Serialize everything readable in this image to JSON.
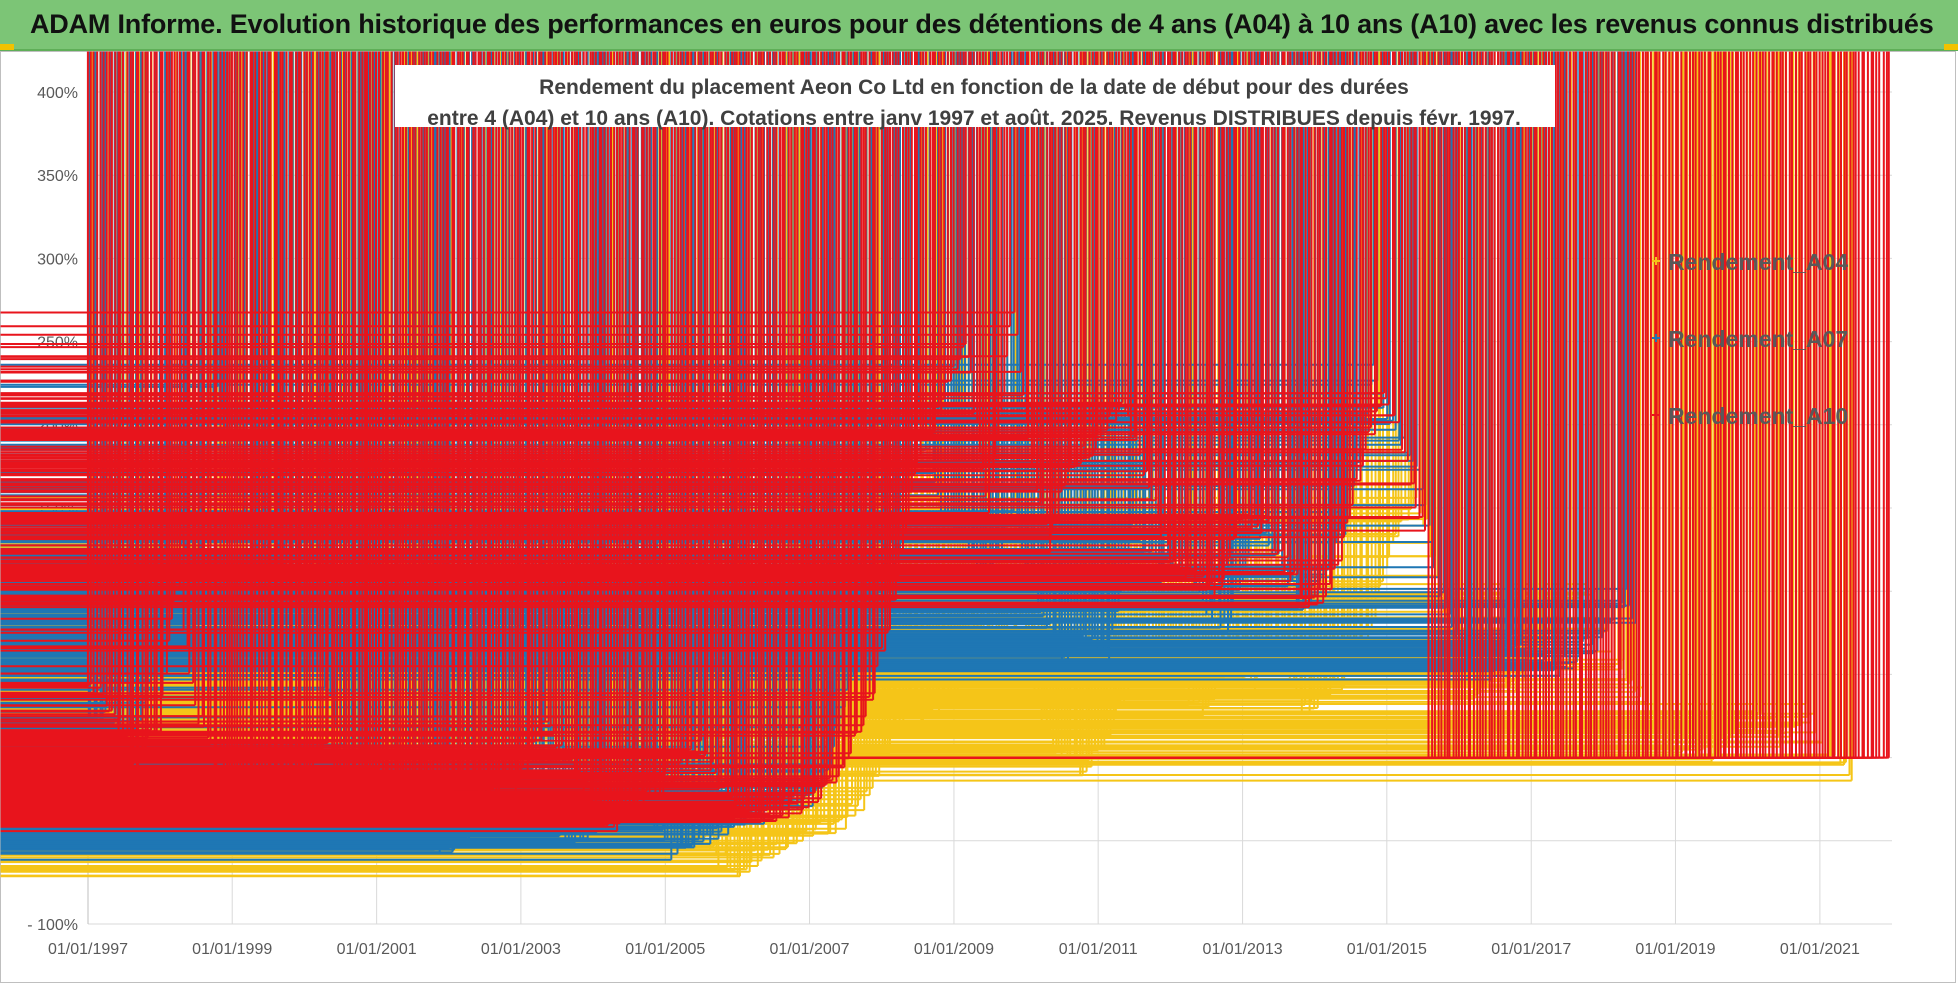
{
  "banner": {
    "title": "ADAM Informe. Evolution historique des performances en euros pour des détentions de 4 ans (A04) à 10 ans (A10) avec les revenus connus distribués"
  },
  "colors": {
    "banner_bg": "#7cc576",
    "A04": "#f5c518",
    "A07": "#1f77b4",
    "A10": "#e8141c",
    "grid": "#d9d9d9"
  },
  "chart_data": {
    "type": "scatter",
    "title_line1": "Rendement du placement Aeon Co Ltd en fonction de la date de début pour des durées",
    "title_line2": "entre 4 (A04) et 10 ans (A10).  Cotations entre janv 1997 et août. 2025. Revenus DISTRIBUES depuis févr. 1997.",
    "xlim": [
      "1997-01-01",
      "2022-01-01"
    ],
    "ylim": [
      -100,
      400
    ],
    "y_unit": "%",
    "y_ticks": [
      -100,
      -50,
      0,
      50,
      100,
      150,
      200,
      250,
      300,
      350,
      400
    ],
    "y_tick_labels": [
      "- 100%",
      "- 50%",
      "0%",
      "50%",
      "100%",
      "150%",
      "200%",
      "250%",
      "300%",
      "350%",
      "400%"
    ],
    "x_tick_labels": [
      "01/01/1997",
      "01/01/1999",
      "01/01/2001",
      "01/01/2003",
      "01/01/2005",
      "01/01/2007",
      "01/01/2009",
      "01/01/2011",
      "01/01/2013",
      "01/01/2015",
      "01/01/2017",
      "01/01/2019",
      "01/01/2021"
    ],
    "x_ticks": [
      "1997-01-01",
      "1999-01-01",
      "2001-01-01",
      "2003-01-01",
      "2005-01-01",
      "2007-01-01",
      "2009-01-01",
      "2011-01-01",
      "2013-01-01",
      "2015-01-01",
      "2017-01-01",
      "2019-01-01",
      "2021-01-01"
    ],
    "grid": true,
    "legend_position": "top-right",
    "marker": "+",
    "series": [
      {
        "name": "Rendement_A04",
        "color": "#f5c518",
        "x": [
          "1997-01-01",
          "1997-05-01",
          "1997-09-01",
          "1998-01-01",
          "1998-04-01",
          "1998-07-01",
          "1998-10-01",
          "1999-01-01",
          "1999-04-01",
          "1999-07-01",
          "1999-10-01",
          "2000-01-01",
          "2000-03-15",
          "2000-06-01",
          "2000-09-01",
          "2001-01-01",
          "2001-06-01",
          "2001-10-01",
          "2002-01-01",
          "2002-04-01",
          "2002-08-01",
          "2002-12-01",
          "2003-03-01",
          "2003-06-01",
          "2003-10-01",
          "2004-01-01",
          "2004-04-01",
          "2004-08-01",
          "2005-01-01",
          "2005-06-01",
          "2005-10-01",
          "2006-01-01",
          "2006-06-01",
          "2007-01-01",
          "2007-06-01",
          "2007-10-01",
          "2008-01-01",
          "2008-05-01",
          "2008-09-01",
          "2009-01-01",
          "2009-04-01",
          "2009-08-01",
          "2009-12-01",
          "2010-03-01",
          "2010-07-01",
          "2010-11-01",
          "2011-03-01",
          "2011-07-01",
          "2011-11-01",
          "2012-03-01",
          "2012-07-01",
          "2012-11-01",
          "2013-03-01",
          "2013-07-01",
          "2013-11-01",
          "2014-03-01",
          "2014-07-01",
          "2014-11-01",
          "2015-02-01",
          "2015-06-01",
          "2015-10-01",
          "2016-03-01",
          "2016-07-01",
          "2016-11-01",
          "2017-03-01",
          "2017-07-01",
          "2017-11-01",
          "2018-03-01",
          "2018-07-01",
          "2018-11-01",
          "2019-03-01",
          "2019-07-01",
          "2019-11-01",
          "2020-03-01",
          "2020-07-01",
          "2020-11-01",
          "2021-03-01",
          "2021-07-01"
        ],
        "y": [
          5,
          -10,
          -15,
          30,
          90,
          130,
          120,
          40,
          15,
          5,
          25,
          40,
          120,
          40,
          15,
          25,
          0,
          15,
          40,
          90,
          50,
          40,
          60,
          55,
          15,
          -35,
          -50,
          -40,
          -50,
          -45,
          -60,
          -70,
          -55,
          -45,
          -40,
          -25,
          -5,
          30,
          25,
          35,
          80,
          60,
          85,
          30,
          0,
          -5,
          15,
          50,
          60,
          40,
          30,
          60,
          45,
          70,
          30,
          40,
          50,
          85,
          130,
          160,
          100,
          35,
          50,
          45,
          70,
          85,
          100,
          60,
          40,
          5,
          10,
          0,
          15,
          25,
          10,
          30,
          0,
          -10
        ]
      },
      {
        "name": "Rendement_A07",
        "color": "#1f77b4",
        "x": [
          "1997-01-01",
          "1997-05-01",
          "1997-09-01",
          "1998-01-01",
          "1998-03-15",
          "1998-07-01",
          "1998-10-15",
          "1999-01-01",
          "1999-04-01",
          "1999-07-01",
          "1999-10-01",
          "2000-01-01",
          "2000-04-01",
          "2000-07-01",
          "2000-10-01",
          "2001-01-01",
          "2001-06-01",
          "2001-10-01",
          "2002-01-01",
          "2002-05-01",
          "2002-09-01",
          "2003-01-01",
          "2003-05-01",
          "2003-09-01",
          "2004-01-01",
          "2004-05-01",
          "2004-09-01",
          "2005-02-01",
          "2005-07-01",
          "2005-12-01",
          "2006-04-01",
          "2006-09-01",
          "2007-02-01",
          "2007-07-01",
          "2007-11-01",
          "2008-03-01",
          "2008-07-01",
          "2008-11-01",
          "2009-03-01",
          "2009-07-01",
          "2009-11-01",
          "2010-03-01",
          "2010-07-01",
          "2010-11-01",
          "2011-03-01",
          "2011-07-01",
          "2011-11-01",
          "2012-03-01",
          "2012-07-01",
          "2012-11-01",
          "2013-03-01",
          "2013-07-01",
          "2013-11-01",
          "2014-03-01",
          "2014-07-01",
          "2014-11-01",
          "2015-02-01",
          "2015-06-01",
          "2015-10-01",
          "2016-02-01",
          "2016-06-01",
          "2016-10-01",
          "2017-02-01",
          "2017-06-01",
          "2017-10-01",
          "2018-01-01",
          "2018-05-01",
          "2018-07-01"
        ],
        "y": [
          20,
          30,
          10,
          60,
          150,
          75,
          225,
          170,
          130,
          80,
          120,
          100,
          55,
          10,
          0,
          -20,
          -40,
          -50,
          -55,
          -45,
          -30,
          0,
          -25,
          -50,
          -40,
          -35,
          -25,
          -55,
          -50,
          -40,
          -35,
          -30,
          -25,
          30,
          90,
          100,
          210,
          150,
          130,
          100,
          150,
          90,
          60,
          70,
          60,
          140,
          110,
          120,
          90,
          80,
          140,
          120,
          90,
          110,
          150,
          230,
          200,
          180,
          100,
          60,
          50,
          70,
          60,
          55,
          65,
          70,
          100,
          70
        ]
      },
      {
        "name": "Rendement_A10",
        "color": "#e8141c",
        "x": [
          "1997-01-01",
          "1997-05-01",
          "1997-09-01",
          "1998-01-01",
          "1998-04-01",
          "1998-07-01",
          "1998-10-01",
          "1999-01-01",
          "1999-04-01",
          "1999-07-01",
          "1999-10-01",
          "2000-01-01",
          "2000-04-01",
          "2000-07-01",
          "2000-10-01",
          "2001-01-01",
          "2001-06-01",
          "2001-10-01",
          "2002-01-01",
          "2002-05-01",
          "2002-09-01",
          "2003-01-01",
          "2003-05-01",
          "2003-09-01",
          "2004-01-01",
          "2004-05-01",
          "2004-09-01",
          "2005-02-01",
          "2005-07-01",
          "2005-12-01",
          "2006-04-01",
          "2006-09-01",
          "2007-02-01",
          "2007-07-01",
          "2007-11-01",
          "2008-03-01",
          "2008-07-01",
          "2008-11-01",
          "2009-03-01",
          "2009-07-01",
          "2009-11-01",
          "2010-01-01",
          "2010-05-01",
          "2010-09-01",
          "2011-01-01",
          "2011-05-01",
          "2011-09-01",
          "2012-01-01",
          "2012-05-01",
          "2012-09-01",
          "2013-01-01",
          "2013-05-01",
          "2013-09-01",
          "2014-01-01",
          "2014-05-01",
          "2014-09-01",
          "2015-01-01",
          "2015-05-01",
          "2015-08-01"
        ],
        "y": [
          45,
          30,
          -5,
          20,
          110,
          30,
          0,
          -10,
          -30,
          -20,
          -25,
          -30,
          10,
          -10,
          -15,
          -10,
          -25,
          -30,
          -10,
          -20,
          -25,
          -15,
          20,
          -5,
          -25,
          -45,
          -30,
          -10,
          10,
          -30,
          -35,
          -30,
          -25,
          -5,
          30,
          90,
          180,
          210,
          250,
          150,
          270,
          200,
          130,
          180,
          190,
          210,
          170,
          120,
          110,
          100,
          140,
          140,
          110,
          90,
          110,
          180,
          220,
          170,
          130
        ]
      },
      {
        "name": "",
        "color": "#e8141c",
        "x": [
          "2015-08-01",
          "2016-01-01",
          "2016-07-01",
          "2017-01-01",
          "2017-07-01",
          "2018-01-01",
          "2018-07-01",
          "2019-01-01",
          "2019-07-01",
          "2020-01-01",
          "2020-07-01",
          "2021-01-01",
          "2021-07-01",
          "2022-01-01"
        ],
        "y": [
          0,
          0,
          0,
          0,
          0,
          0,
          0,
          0,
          0,
          0,
          0,
          0,
          0,
          0
        ]
      }
    ]
  }
}
